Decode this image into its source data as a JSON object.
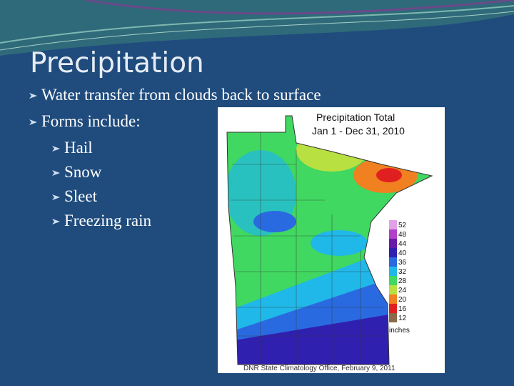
{
  "slide": {
    "title": "Precipitation",
    "bullets": [
      {
        "text": "Water transfer from clouds back to surface",
        "sub": []
      },
      {
        "text": "Forms include:",
        "sub": [
          "Hail",
          "Snow",
          "Sleet",
          "Freezing rain"
        ]
      }
    ],
    "map": {
      "title": "Precipitation Total",
      "subtitle": "Jan 1 - Dec 31, 2010",
      "legend": {
        "labels": [
          "52",
          "48",
          "44",
          "40",
          "36",
          "32",
          "28",
          "24",
          "20",
          "16",
          "12"
        ],
        "colors": [
          "#e2a0e8",
          "#b040c8",
          "#6a1aa8",
          "#3020b0",
          "#2a6ae0",
          "#20b8e8",
          "#40d860",
          "#b8e040",
          "#f08020",
          "#e02020",
          "#8a6a4a"
        ],
        "unit": "inches"
      },
      "credit": "DNR State Climatology Office, February 9, 2011"
    }
  }
}
